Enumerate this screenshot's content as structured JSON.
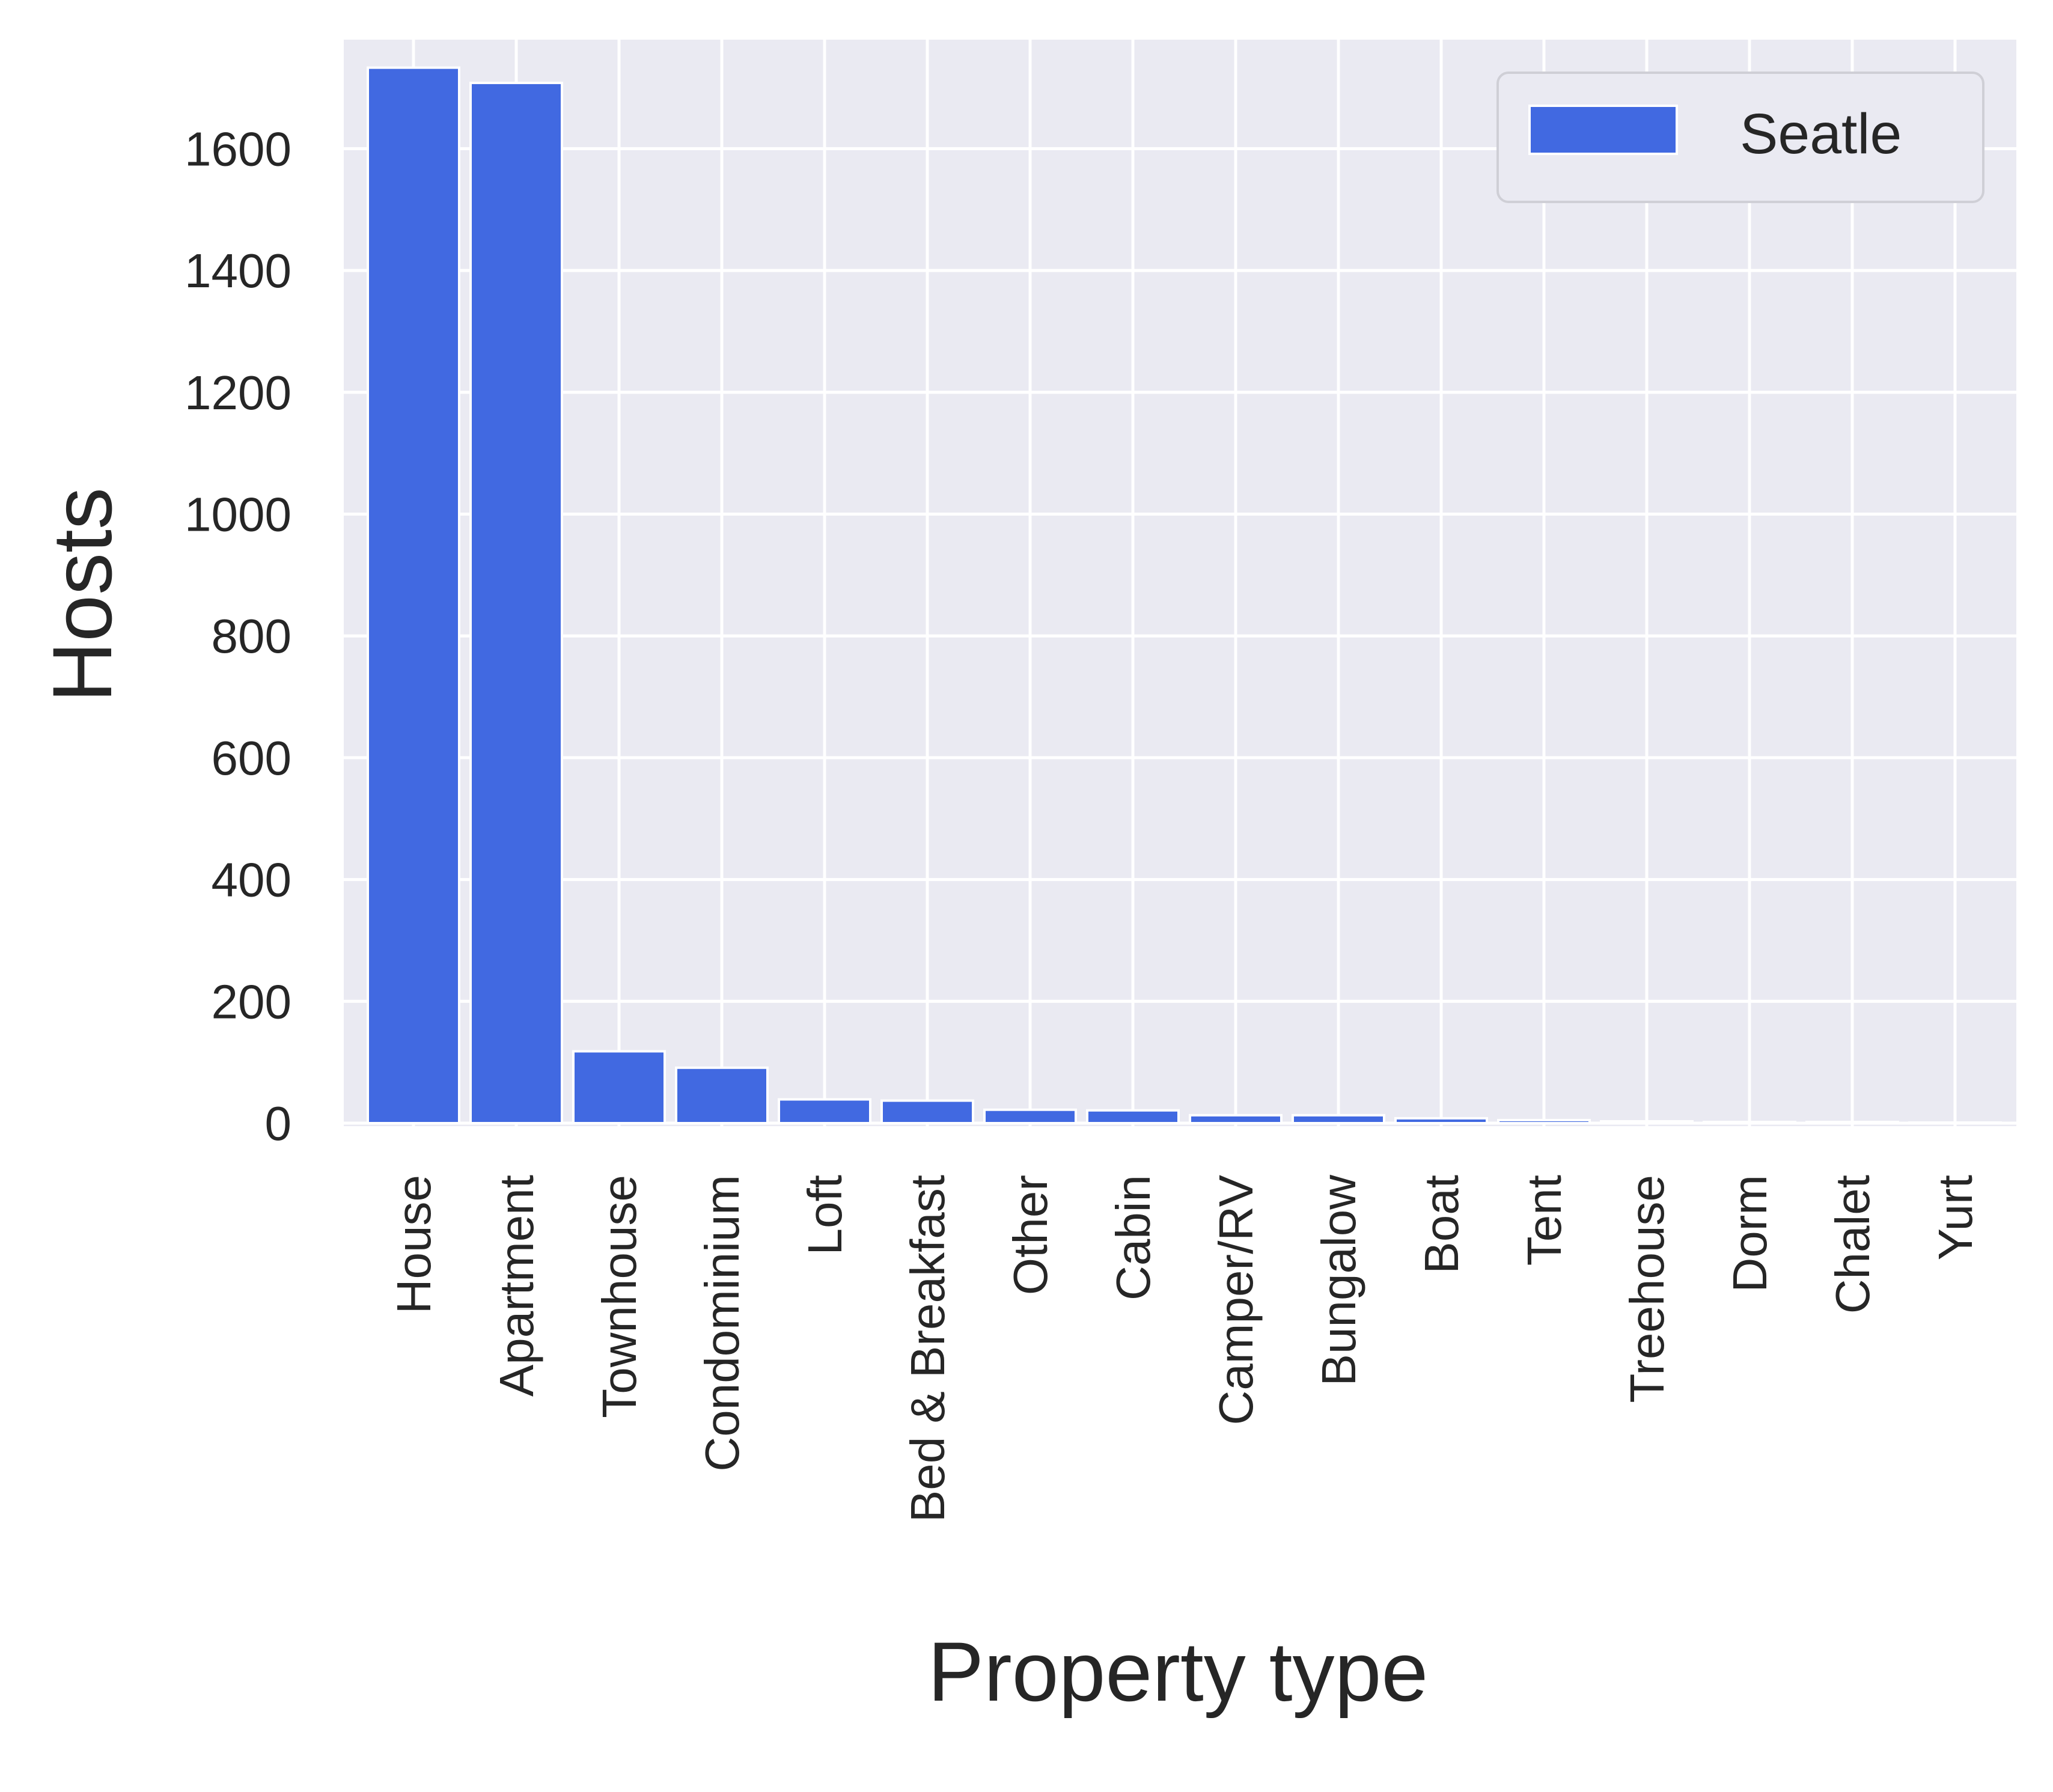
{
  "chart_data": {
    "type": "bar",
    "xlabel": "Property type",
    "ylabel": "Hosts",
    "categories": [
      "House",
      "Apartment",
      "Townhouse",
      "Condominium",
      "Loft",
      "Bed & Breakfast",
      "Other",
      "Cabin",
      "Camper/RV",
      "Bungalow",
      "Boat",
      "Tent",
      "Treehouse",
      "Dorm",
      "Chalet",
      "Yurt"
    ],
    "series": [
      {
        "name": "Seatle",
        "color": "#4169e1",
        "values": [
          1733,
          1708,
          118,
          91,
          39,
          37,
          22,
          21,
          13,
          13,
          8,
          5,
          3,
          2,
          2,
          1
        ]
      }
    ],
    "yticks": [
      "0",
      "200",
      "400",
      "600",
      "800",
      "1000",
      "1200",
      "1400",
      "1600"
    ],
    "ylim": [
      0,
      1785
    ],
    "grid": true,
    "legend_position": "top-right",
    "colors": {
      "background": "#eaeaf2",
      "grid": "#ffffff",
      "bar": "#4169e1"
    }
  }
}
